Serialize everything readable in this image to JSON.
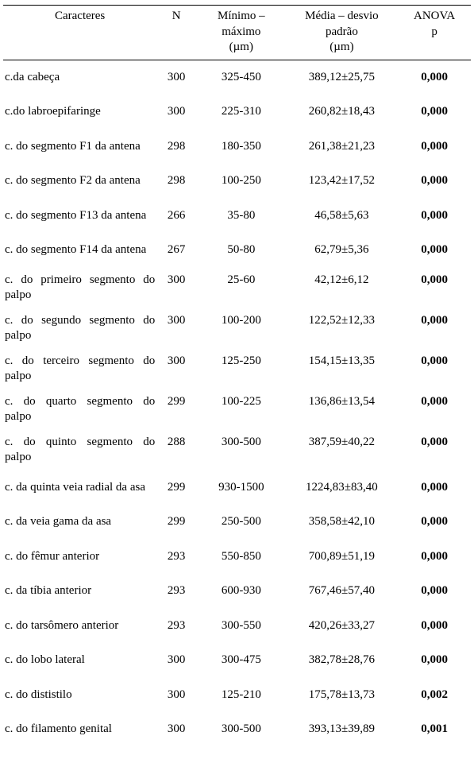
{
  "colors": {
    "text": "#000000",
    "background": "#ffffff",
    "rule": "#000000"
  },
  "fonts": {
    "family": "Times New Roman",
    "body_size_pt": 12,
    "header_size_pt": 12
  },
  "header": {
    "col1": "Caracteres",
    "col2": "N",
    "col3_l1": "Mínimo –",
    "col3_l2": "máximo",
    "col3_l3": "(µm)",
    "col4_l1": "Média – desvio",
    "col4_l2": "padrão",
    "col4_l3": "(µm)",
    "col5_l1": "ANOVA",
    "col5_l2": "p"
  },
  "rows": [
    {
      "c": "c.da cabeça",
      "n": "300",
      "mm": "325-450",
      "msd": "389,12±25,75",
      "p": "0,000",
      "twoLine": false
    },
    {
      "c": "c.do labroepifaringe",
      "n": "300",
      "mm": "225-310",
      "msd": "260,82±18,43",
      "p": "0,000",
      "twoLine": false
    },
    {
      "c": "c. do segmento F1 da antena",
      "n": "298",
      "mm": "180-350",
      "msd": "261,38±21,23",
      "p": "0,000",
      "twoLine": false
    },
    {
      "c": "c. do segmento F2 da antena",
      "n": "298",
      "mm": "100-250",
      "msd": "123,42±17,52",
      "p": "0,000",
      "twoLine": false
    },
    {
      "c": "c. do segmento F13 da antena",
      "n": "266",
      "mm": "35-80",
      "msd": "46,58±5,63",
      "p": "0,000",
      "twoLine": false
    },
    {
      "c": "c. do segmento F14 da antena",
      "n": "267",
      "mm": "50-80",
      "msd": "62,79±5,36",
      "p": "0,000",
      "twoLine": false
    },
    {
      "c1": "c.  do  primeiro  segmento  do",
      "c2": "palpo",
      "n": "300",
      "mm": "25-60",
      "msd": "42,12±6,12",
      "p": "0,000",
      "twoLine": true
    },
    {
      "c1": "c.  do  segundo  segmento  do",
      "c2": "palpo",
      "n": "300",
      "mm": "100-200",
      "msd": "122,52±12,33",
      "p": "0,000",
      "twoLine": true
    },
    {
      "c1": "c.  do  terceiro  segmento  do",
      "c2": "palpo",
      "n": "300",
      "mm": "125-250",
      "msd": "154,15±13,35",
      "p": "0,000",
      "twoLine": true
    },
    {
      "c1": "c.  do  quarto  segmento  do",
      "c2": "palpo",
      "n": "299",
      "mm": "100-225",
      "msd": "136,86±13,54",
      "p": "0,000",
      "twoLine": true
    },
    {
      "c1": "c.  do  quinto  segmento  do",
      "c2": "palpo",
      "n": "288",
      "mm": "300-500",
      "msd": "387,59±40,22",
      "p": "0,000",
      "twoLine": true
    },
    {
      "c": "c. da quinta veia radial da asa",
      "n": "299",
      "mm": "930-1500",
      "msd": "1224,83±83,40",
      "p": "0,000",
      "twoLine": false
    },
    {
      "c": "c. da veia gama da asa",
      "n": "299",
      "mm": "250-500",
      "msd": "358,58±42,10",
      "p": "0,000",
      "twoLine": false
    },
    {
      "c": "c. do fêmur anterior",
      "n": "293",
      "mm": "550-850",
      "msd": "700,89±51,19",
      "p": "0,000",
      "twoLine": false
    },
    {
      "c": "c. da tíbia anterior",
      "n": "293",
      "mm": "600-930",
      "msd": "767,46±57,40",
      "p": "0,000",
      "twoLine": false
    },
    {
      "c": "c. do tarsômero anterior",
      "n": "293",
      "mm": "300-550",
      "msd": "420,26±33,27",
      "p": "0,000",
      "twoLine": false
    },
    {
      "c": "c. do lobo lateral",
      "n": "300",
      "mm": "300-475",
      "msd": "382,78±28,76",
      "p": "0,000",
      "twoLine": false
    },
    {
      "c": "c. do dististilo",
      "n": "300",
      "mm": "125-210",
      "msd": "175,78±13,73",
      "p": "0,002",
      "twoLine": false
    },
    {
      "c": "c. do filamento genital",
      "n": "300",
      "mm": "300-500",
      "msd": "393,13±39,89",
      "p": "0,001",
      "twoLine": false
    }
  ]
}
